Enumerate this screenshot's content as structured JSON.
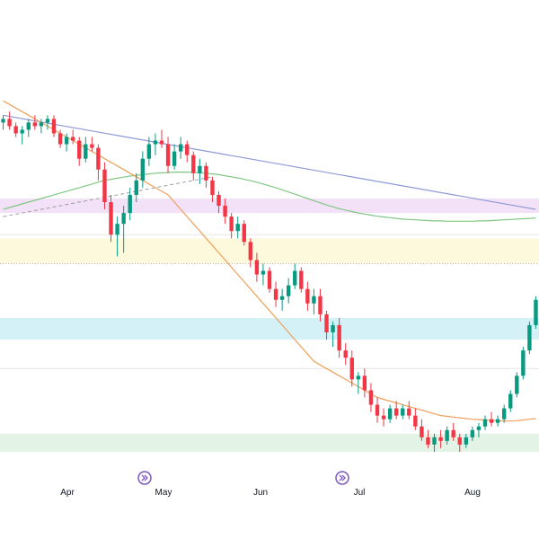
{
  "chart_data": {
    "type": "candlestick",
    "title": "",
    "xlabel": "",
    "ylabel": "",
    "x_tick_labels": [
      "Apr",
      "May",
      "Jun",
      "Jul",
      "Aug"
    ],
    "colors": {
      "up": "#089981",
      "down": "#f23645",
      "ma_fast": "#f0a05a",
      "ma_slow": "#81c784",
      "trendline": "#8c97d6",
      "zone_pink": "#f3e1f7",
      "zone_yellow": "#fdf9dc",
      "zone_cyan": "#d4f1f7",
      "zone_green": "#e3f3e6",
      "grid": "#e6e6e6",
      "event_marker": "#7e57c2"
    },
    "y_range": [
      0,
      100
    ],
    "ohlc": [
      [
        86,
        88,
        84,
        87
      ],
      [
        87,
        89,
        84,
        85
      ],
      [
        85,
        86,
        82,
        83
      ],
      [
        83,
        85,
        80,
        84
      ],
      [
        84,
        87,
        82,
        86
      ],
      [
        86,
        88,
        84,
        85
      ],
      [
        85,
        87,
        83,
        86
      ],
      [
        86,
        88,
        84,
        87
      ],
      [
        87,
        88,
        82,
        83
      ],
      [
        83,
        84,
        79,
        80
      ],
      [
        80,
        83,
        78,
        82
      ],
      [
        82,
        84,
        80,
        81
      ],
      [
        81,
        82,
        74,
        76
      ],
      [
        76,
        82,
        75,
        80
      ],
      [
        80,
        82,
        78,
        79
      ],
      [
        79,
        80,
        70,
        73
      ],
      [
        73,
        75,
        62,
        64
      ],
      [
        64,
        66,
        53,
        55
      ],
      [
        55,
        60,
        49,
        58
      ],
      [
        58,
        63,
        50,
        61
      ],
      [
        61,
        68,
        59,
        66
      ],
      [
        66,
        72,
        64,
        70
      ],
      [
        70,
        78,
        68,
        76
      ],
      [
        76,
        82,
        74,
        80
      ],
      [
        80,
        83,
        77,
        81
      ],
      [
        81,
        84,
        79,
        80
      ],
      [
        80,
        82,
        72,
        74
      ],
      [
        74,
        80,
        73,
        78
      ],
      [
        78,
        82,
        76,
        80
      ],
      [
        80,
        81,
        75,
        77
      ],
      [
        77,
        78,
        70,
        72
      ],
      [
        72,
        76,
        69,
        74
      ],
      [
        74,
        75,
        68,
        70
      ],
      [
        70,
        71,
        64,
        66
      ],
      [
        66,
        67,
        61,
        63
      ],
      [
        63,
        65,
        58,
        60
      ],
      [
        60,
        61,
        54,
        56
      ],
      [
        56,
        60,
        54,
        58
      ],
      [
        58,
        59,
        52,
        53
      ],
      [
        53,
        54,
        46,
        48
      ],
      [
        48,
        50,
        42,
        44
      ],
      [
        44,
        47,
        41,
        45
      ],
      [
        45,
        46,
        39,
        40
      ],
      [
        40,
        42,
        35,
        37
      ],
      [
        37,
        40,
        34,
        38
      ],
      [
        38,
        43,
        36,
        41
      ],
      [
        41,
        47,
        40,
        45
      ],
      [
        45,
        46,
        39,
        40
      ],
      [
        40,
        42,
        34,
        36
      ],
      [
        36,
        40,
        33,
        38
      ],
      [
        38,
        40,
        31,
        33
      ],
      [
        33,
        34,
        26,
        28
      ],
      [
        28,
        31,
        24,
        30
      ],
      [
        30,
        32,
        21,
        23
      ],
      [
        23,
        25,
        19,
        21
      ],
      [
        21,
        23,
        13,
        15
      ],
      [
        15,
        17,
        11,
        16
      ],
      [
        16,
        18,
        10,
        12
      ],
      [
        12,
        14,
        6,
        8
      ],
      [
        8,
        10,
        3,
        5
      ],
      [
        5,
        7,
        2,
        4
      ],
      [
        4,
        8,
        3,
        7
      ],
      [
        7,
        9,
        4,
        5
      ],
      [
        5,
        8,
        4,
        7
      ],
      [
        7,
        9,
        4,
        5
      ],
      [
        5,
        7,
        1,
        2
      ],
      [
        2,
        4,
        -2,
        -1
      ],
      [
        -1,
        1,
        -4,
        -3
      ],
      [
        -3,
        0,
        -5,
        -1
      ],
      [
        -1,
        1,
        -4,
        -2
      ],
      [
        -2,
        2,
        -3,
        1
      ],
      [
        1,
        3,
        -2,
        -1
      ],
      [
        -1,
        0,
        -5,
        -3
      ],
      [
        -3,
        0,
        -4,
        -1
      ],
      [
        -1,
        2,
        -2,
        1
      ],
      [
        1,
        3,
        -1,
        2
      ],
      [
        2,
        5,
        1,
        4
      ],
      [
        4,
        6,
        2,
        3
      ],
      [
        3,
        5,
        2,
        4
      ],
      [
        4,
        8,
        3,
        7
      ],
      [
        7,
        12,
        6,
        11
      ],
      [
        11,
        17,
        10,
        16
      ],
      [
        16,
        24,
        15,
        23
      ],
      [
        23,
        31,
        22,
        30
      ],
      [
        30,
        38,
        29,
        37
      ]
    ],
    "ma_fast": [
      92,
      91,
      90,
      89,
      88,
      87,
      86,
      85,
      84,
      83,
      82,
      81,
      80,
      79,
      78,
      77,
      76,
      75,
      74,
      73,
      72,
      71,
      70,
      69,
      68,
      67,
      66,
      64,
      62,
      60,
      58,
      56,
      54,
      52,
      50,
      48,
      46,
      44,
      42,
      40,
      38,
      36,
      34,
      32,
      30,
      28,
      26,
      24,
      22,
      20,
      19,
      18,
      17,
      16,
      15,
      14,
      13,
      12,
      11,
      10,
      9.5,
      9,
      8.5,
      8,
      7.5,
      7,
      6.5,
      6,
      5.5,
      5,
      4.8,
      4.6,
      4.4,
      4.2,
      4,
      3.9,
      3.8,
      3.7,
      3.6,
      3.5,
      3.5,
      3.6,
      3.8,
      4,
      4.2
    ],
    "ma_slow": [
      62,
      62.5,
      63,
      63.5,
      64,
      64.5,
      65,
      65.5,
      66,
      66.5,
      67,
      67.5,
      68,
      68.5,
      69,
      69.5,
      70,
      70.3,
      70.6,
      70.9,
      71.2,
      71.4,
      71.6,
      71.8,
      72,
      72.1,
      72.2,
      72.3,
      72.3,
      72.3,
      72.2,
      72.1,
      72,
      71.8,
      71.6,
      71.3,
      71,
      70.7,
      70.3,
      69.9,
      69.5,
      69,
      68.5,
      68,
      67.4,
      66.8,
      66.2,
      65.6,
      65,
      64.4,
      63.8,
      63.2,
      62.7,
      62.2,
      61.8,
      61.4,
      61,
      60.7,
      60.4,
      60.1,
      59.9,
      59.7,
      59.5,
      59.3,
      59.2,
      59.1,
      59,
      58.9,
      58.8,
      58.8,
      58.7,
      58.7,
      58.7,
      58.7,
      58.7,
      58.8,
      58.8,
      58.9,
      59,
      59.1,
      59.2,
      59.3,
      59.4,
      59.5,
      59.6
    ],
    "trendline": [
      [
        0,
        88
      ],
      [
        84,
        62
      ]
    ],
    "dashed_line": [
      [
        0,
        60
      ],
      [
        33,
        71
      ]
    ],
    "zones": [
      {
        "name": "pink",
        "from": 61,
        "to": 65
      },
      {
        "name": "yellow",
        "from": 47,
        "to": 54
      },
      {
        "name": "cyan",
        "from": 26,
        "to": 32
      },
      {
        "name": "green",
        "from": -5,
        "to": 0
      }
    ],
    "reference_lines": [
      55,
      47,
      18
    ]
  }
}
